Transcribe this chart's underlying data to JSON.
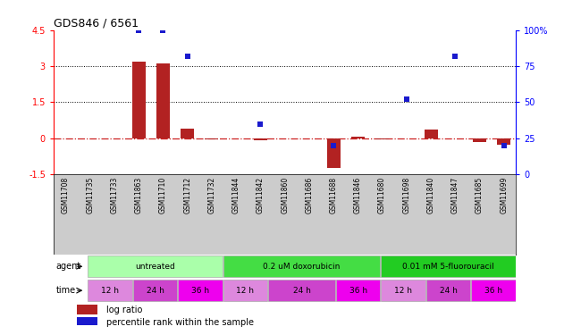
{
  "title": "GDS846 / 6561",
  "samples": [
    "GSM11708",
    "GSM11735",
    "GSM11733",
    "GSM11863",
    "GSM11710",
    "GSM11712",
    "GSM11732",
    "GSM11844",
    "GSM11842",
    "GSM11860",
    "GSM11686",
    "GSM11688",
    "GSM11846",
    "GSM11680",
    "GSM11698",
    "GSM11840",
    "GSM11847",
    "GSM11685",
    "GSM11699"
  ],
  "log_ratio": [
    0.0,
    0.0,
    0.0,
    3.2,
    3.1,
    0.4,
    -0.05,
    0.0,
    -0.08,
    0.0,
    0.0,
    -1.25,
    0.05,
    -0.05,
    0.0,
    0.35,
    0.0,
    -0.15,
    -0.28
  ],
  "percentile_rank": [
    null,
    null,
    null,
    100,
    100,
    82,
    null,
    null,
    35,
    null,
    null,
    20,
    null,
    null,
    52,
    null,
    82,
    null,
    20
  ],
  "ylim_left": [
    -1.5,
    4.5
  ],
  "ylim_right": [
    0,
    100
  ],
  "yticks_left": [
    -1.5,
    0,
    1.5,
    3,
    4.5
  ],
  "yticks_right": [
    0,
    25,
    50,
    75,
    100
  ],
  "hlines": [
    1.5,
    3.0
  ],
  "bar_color": "#b22222",
  "dot_color": "#1a1acd",
  "zero_line_color": "#cc2222",
  "agent_groups": [
    {
      "label": "untreated",
      "start": 0,
      "end": 6,
      "color": "#aaffaa"
    },
    {
      "label": "0.2 uM doxorubicin",
      "start": 6,
      "end": 13,
      "color": "#44dd44"
    },
    {
      "label": "0.01 mM 5-fluorouracil",
      "start": 13,
      "end": 19,
      "color": "#22cc22"
    }
  ],
  "time_groups": [
    {
      "label": "12 h",
      "start": 0,
      "end": 2,
      "color": "#dd88dd"
    },
    {
      "label": "24 h",
      "start": 2,
      "end": 4,
      "color": "#cc44cc"
    },
    {
      "label": "36 h",
      "start": 4,
      "end": 6,
      "color": "#ee00ee"
    },
    {
      "label": "12 h",
      "start": 6,
      "end": 8,
      "color": "#dd88dd"
    },
    {
      "label": "24 h",
      "start": 8,
      "end": 11,
      "color": "#cc44cc"
    },
    {
      "label": "36 h",
      "start": 11,
      "end": 13,
      "color": "#ee00ee"
    },
    {
      "label": "12 h",
      "start": 13,
      "end": 15,
      "color": "#dd88dd"
    },
    {
      "label": "24 h",
      "start": 15,
      "end": 17,
      "color": "#cc44cc"
    },
    {
      "label": "36 h",
      "start": 17,
      "end": 19,
      "color": "#ee00ee"
    }
  ],
  "legend_bar_label": "log ratio",
  "legend_dot_label": "percentile rank within the sample",
  "background_color": "#ffffff",
  "label_bg": "#cccccc"
}
